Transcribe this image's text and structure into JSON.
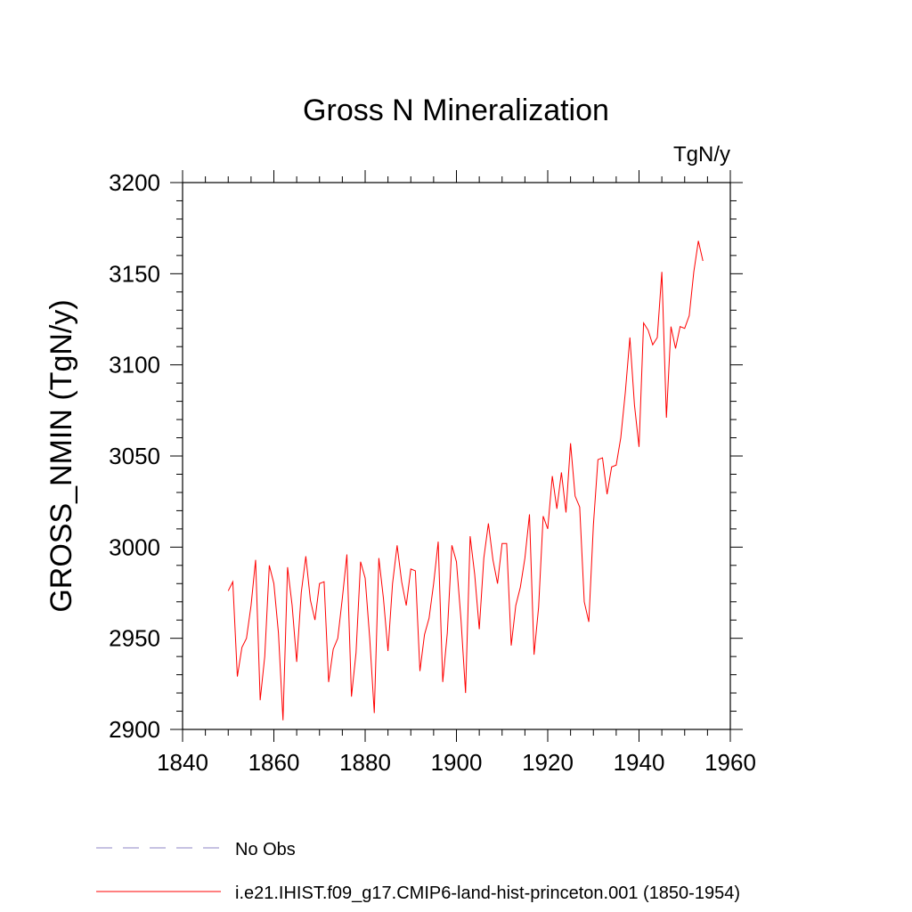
{
  "chart_data": {
    "type": "line",
    "title": "Gross N Mineralization",
    "units_label": "TgN/y",
    "xlabel": "",
    "ylabel": "GROSS_NMIN  (TgN/y)",
    "xlim": [
      1840,
      1960
    ],
    "ylim": [
      2900,
      3200
    ],
    "xticks": [
      1840,
      1860,
      1880,
      1900,
      1920,
      1940,
      1960
    ],
    "yticks": [
      2900,
      2950,
      3000,
      3050,
      3100,
      3150,
      3200
    ],
    "grid": false,
    "legend_position": "bottom-left",
    "series": [
      {
        "name": "i.e21.IHIST.f09_g17.CMIP6-land-hist-princeton.001 (1850-1954)",
        "color": "#ff0000",
        "style": "solid",
        "x": [
          1850,
          1851,
          1852,
          1853,
          1854,
          1855,
          1856,
          1857,
          1858,
          1859,
          1860,
          1861,
          1862,
          1863,
          1864,
          1865,
          1866,
          1867,
          1868,
          1869,
          1870,
          1871,
          1872,
          1873,
          1874,
          1875,
          1876,
          1877,
          1878,
          1879,
          1880,
          1881,
          1882,
          1883,
          1884,
          1885,
          1886,
          1887,
          1888,
          1889,
          1890,
          1891,
          1892,
          1893,
          1894,
          1895,
          1896,
          1897,
          1898,
          1899,
          1900,
          1901,
          1902,
          1903,
          1904,
          1905,
          1906,
          1907,
          1908,
          1909,
          1910,
          1911,
          1912,
          1913,
          1914,
          1915,
          1916,
          1917,
          1918,
          1919,
          1920,
          1921,
          1922,
          1923,
          1924,
          1925,
          1926,
          1927,
          1928,
          1929,
          1930,
          1931,
          1932,
          1933,
          1934,
          1935,
          1936,
          1937,
          1938,
          1939,
          1940,
          1941,
          1942,
          1943,
          1944,
          1945,
          1946,
          1947,
          1948,
          1949,
          1950,
          1951,
          1952,
          1953,
          1954
        ],
        "y": [
          2976,
          2981,
          2929,
          2945,
          2950,
          2968,
          2993,
          2916,
          2940,
          2990,
          2980,
          2953,
          2905,
          2989,
          2968,
          2937,
          2975,
          2995,
          2971,
          2960,
          2980,
          2981,
          2926,
          2944,
          2950,
          2972,
          2996,
          2918,
          2942,
          2992,
          2983,
          2950,
          2909,
          2994,
          2972,
          2943,
          2980,
          3001,
          2981,
          2968,
          2988,
          2987,
          2932,
          2952,
          2961,
          2980,
          3003,
          2926,
          2953,
          3001,
          2992,
          2960,
          2920,
          3006,
          2985,
          2955,
          2994,
          3013,
          2993,
          2980,
          3002,
          3002,
          2946,
          2968,
          2978,
          2994,
          3018,
          2941,
          2967,
          3017,
          3010,
          3039,
          3021,
          3041,
          3019,
          3057,
          3028,
          3022,
          2970,
          2959,
          3012,
          3048,
          3049,
          3029,
          3044,
          3045,
          3060,
          3085,
          3115,
          3078,
          3055,
          3123,
          3119,
          3111,
          3115,
          3151,
          3071,
          3121,
          3109,
          3121,
          3120,
          3127,
          3151,
          3168,
          3157
        ]
      },
      {
        "name": "No Obs",
        "color": "#8c86c6",
        "style": "dashed",
        "x": [],
        "y": []
      }
    ]
  }
}
